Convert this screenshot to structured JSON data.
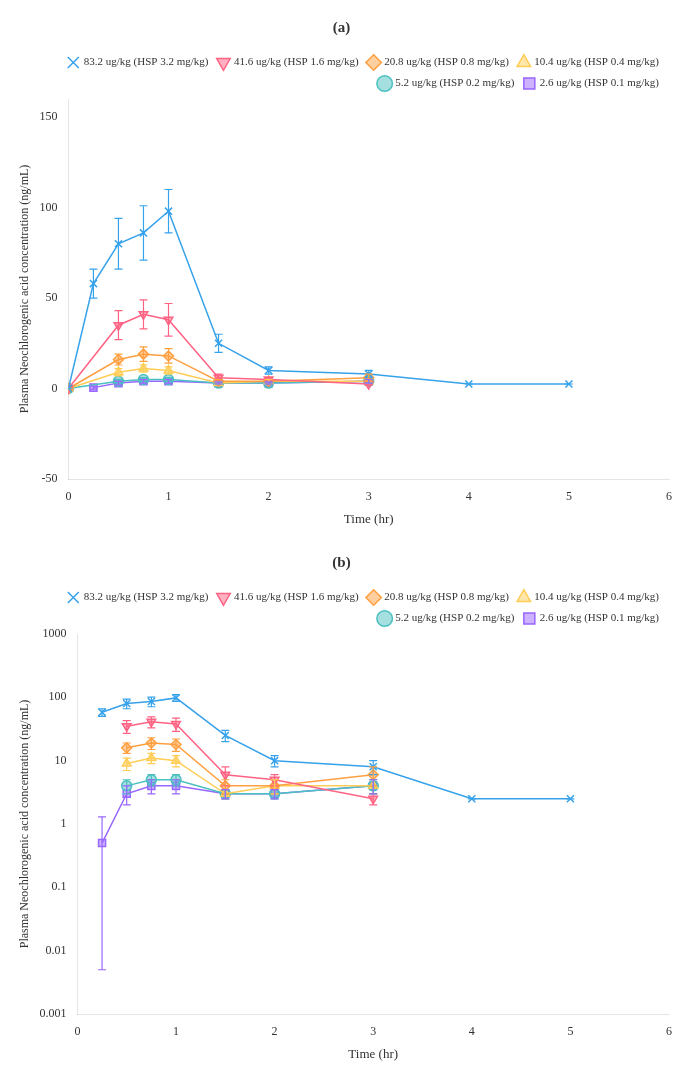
{
  "chart_data": [
    {
      "type": "line",
      "title": "(a)",
      "x_label": "Time (hr)",
      "y_label": "Plasma Neochlorogenic acid concentration (ng/mL)",
      "xlim": [
        0,
        6
      ],
      "xticks": [
        0,
        1,
        2,
        3,
        4,
        5,
        6
      ],
      "ylim": [
        -50,
        160
      ],
      "yticks": [
        -50,
        0,
        50,
        100,
        150
      ],
      "grid": false,
      "legend": "upper right",
      "series": [
        {
          "name": "83.2 ug/kg (HSP 3.2 mg/kg)",
          "marker": "x",
          "x": [
            0,
            0.25,
            0.5,
            0.75,
            1.0,
            1.5,
            2.0,
            3.0,
            4.0,
            5.0
          ],
          "values": [
            0,
            58,
            80,
            86,
            98,
            25,
            10,
            8,
            2.5,
            2.5
          ],
          "error": [
            0,
            8,
            14,
            15,
            12,
            5,
            2,
            2,
            0,
            0
          ]
        },
        {
          "name": "41.6 ug/kg (HSP 1.6 mg/kg)",
          "marker": "triangle_down",
          "x": [
            0,
            0.5,
            0.75,
            1.0,
            1.5,
            2.0,
            3.0
          ],
          "values": [
            0,
            35,
            41,
            38,
            6,
            5,
            2.5
          ],
          "error": [
            0,
            8,
            8,
            9,
            2,
            1,
            0.5
          ]
        },
        {
          "name": "20.8 ug/kg (HSP 0.8 mg/kg)",
          "marker": "diamond",
          "x": [
            0,
            0.5,
            0.75,
            1.0,
            1.5,
            2.0,
            3.0
          ],
          "values": [
            0,
            16,
            19,
            18,
            4,
            4,
            6
          ],
          "error": [
            0,
            3,
            4,
            4,
            1,
            1,
            2
          ]
        },
        {
          "name": "10.4 ug/kg (HSP 0.4 mg/kg)",
          "marker": "triangle_up",
          "x": [
            0,
            0.5,
            0.75,
            1.0,
            1.5,
            2.0,
            3.0
          ],
          "values": [
            0,
            9,
            11,
            10,
            3,
            4,
            4
          ],
          "error": [
            0,
            2,
            2,
            2,
            0.5,
            1,
            1
          ]
        },
        {
          "name": "5.2 ug/kg (HSP 0.2 mg/kg)",
          "marker": "circle",
          "x": [
            0,
            0.5,
            0.75,
            1.0,
            1.5,
            2.0,
            3.0
          ],
          "values": [
            0,
            4,
            5,
            5,
            3,
            3,
            4
          ],
          "error": [
            0,
            1,
            1,
            1,
            0.5,
            0.5,
            1
          ]
        },
        {
          "name": "2.6 ug/kg (HSP 0.1 mg/kg)",
          "marker": "square",
          "x": [
            0.25,
            0.5,
            0.75,
            1.0,
            1.5,
            2.0,
            3.0
          ],
          "values": [
            0.5,
            3,
            4,
            4,
            3,
            3,
            4
          ],
          "error": [
            0.8,
            1,
            1,
            1,
            0.5,
            0.5,
            1
          ]
        }
      ]
    },
    {
      "type": "line",
      "title": "(b)",
      "x_label": "Time (hr)",
      "y_label": "Plasma Neochlorogenic acid concentration (ng/mL)",
      "log": "y",
      "xlim": [
        0,
        6
      ],
      "xticks": [
        0,
        1,
        2,
        3,
        4,
        5,
        6
      ],
      "ylim": [
        0.001,
        1000
      ],
      "yticks": [
        0.001,
        0.01,
        0.1,
        1,
        10,
        100,
        1000
      ],
      "grid": false,
      "legend": "upper right",
      "series": [
        {
          "name": "83.2 ug/kg (HSP 3.2 mg/kg)",
          "marker": "x",
          "x": [
            0.25,
            0.5,
            0.75,
            1.0,
            1.5,
            2.0,
            3.0,
            4.0,
            5.0
          ],
          "values": [
            58,
            80,
            86,
            98,
            25,
            10,
            8,
            2.5,
            2.5
          ],
          "error_minus": [
            8,
            14,
            15,
            12,
            5,
            2,
            2,
            0,
            0
          ],
          "error_plus": [
            8,
            14,
            15,
            12,
            5,
            2,
            2,
            0,
            0
          ]
        },
        {
          "name": "41.6 ug/kg (HSP 1.6 mg/kg)",
          "marker": "triangle_down",
          "x": [
            0.5,
            0.75,
            1.0,
            1.5,
            2.0,
            3.0
          ],
          "values": [
            35,
            41,
            38,
            6,
            5,
            2.5
          ],
          "error_minus": [
            8,
            8,
            9,
            2,
            1,
            0.5
          ],
          "error_plus": [
            8,
            8,
            9,
            2,
            1,
            0.5
          ]
        },
        {
          "name": "20.8 ug/kg (HSP 0.8 mg/kg)",
          "marker": "diamond",
          "x": [
            0.5,
            0.75,
            1.0,
            1.5,
            2.0,
            3.0
          ],
          "values": [
            16,
            19,
            18,
            4,
            4,
            6
          ],
          "error_minus": [
            3,
            4,
            4,
            1,
            1,
            2
          ],
          "error_plus": [
            3,
            4,
            4,
            1,
            1,
            2
          ]
        },
        {
          "name": "10.4 ug/kg (HSP 0.4 mg/kg)",
          "marker": "triangle_up",
          "x": [
            0.5,
            0.75,
            1.0,
            1.5,
            2.0,
            3.0
          ],
          "values": [
            9,
            11,
            10,
            3,
            4,
            4
          ],
          "error_minus": [
            2,
            2,
            2,
            0.5,
            1,
            1
          ],
          "error_plus": [
            2,
            2,
            2,
            0.5,
            1,
            1
          ]
        },
        {
          "name": "5.2 ug/kg (HSP 0.2 mg/kg)",
          "marker": "circle",
          "x": [
            0.5,
            0.75,
            1.0,
            1.5,
            2.0,
            3.0
          ],
          "values": [
            4,
            5,
            5,
            3,
            3,
            4
          ],
          "error_minus": [
            1,
            1,
            1,
            0.5,
            0.5,
            1
          ],
          "error_plus": [
            1,
            1,
            1,
            0.5,
            0.5,
            1
          ]
        },
        {
          "name": "2.6 ug/kg (HSP 0.1 mg/kg)",
          "marker": "square",
          "x": [
            0.25,
            0.5,
            0.75,
            1.0,
            1.5,
            2.0,
            3.0
          ],
          "values": [
            0.5,
            3,
            4,
            4,
            3,
            3,
            4
          ],
          "error_minus": [
            0.495,
            1,
            1,
            1,
            0.5,
            0.5,
            1
          ],
          "error_plus": [
            0.8,
            1,
            1,
            1,
            0.5,
            0.5,
            1
          ]
        }
      ]
    }
  ]
}
